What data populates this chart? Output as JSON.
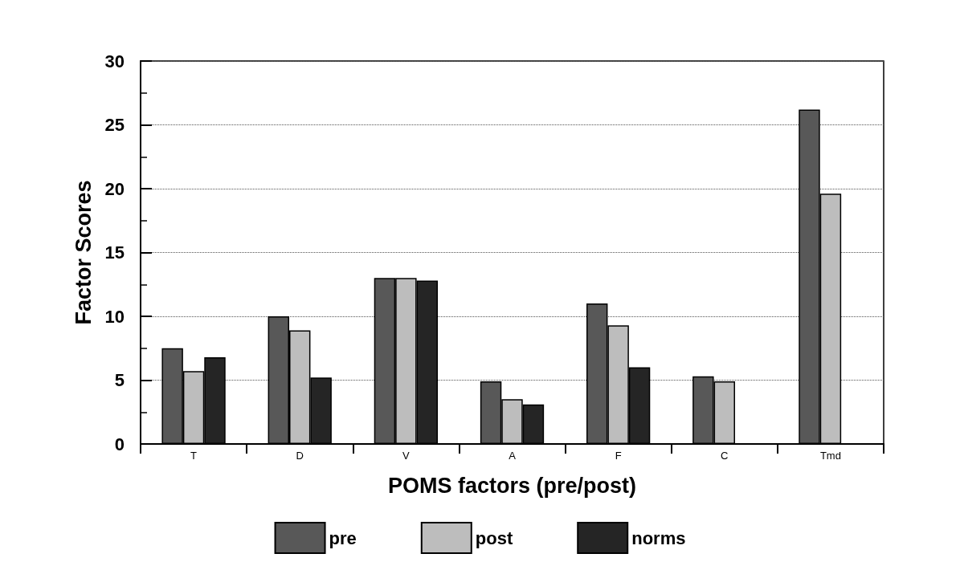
{
  "chart_data": {
    "type": "bar",
    "xlabel": "POMS factors (pre/post)",
    "ylabel": "Factor Scores",
    "categories": [
      "T",
      "D",
      "V",
      "A",
      "F",
      "C",
      "Tmd"
    ],
    "series": [
      {
        "name": "pre",
        "color": "#585858",
        "values": [
          7.5,
          10,
          13,
          4.9,
          11,
          5.3,
          26.2
        ]
      },
      {
        "name": "post",
        "color": "#bdbdbd",
        "values": [
          5.7,
          8.9,
          13,
          3.5,
          9.3,
          4.9,
          19.6
        ]
      },
      {
        "name": "norms",
        "color": "#252525",
        "values": [
          6.8,
          5.2,
          12.8,
          3.1,
          6,
          null,
          null
        ]
      }
    ],
    "ylim": [
      0,
      30
    ],
    "yticks": [
      0,
      {
        "value": 2.5,
        "label": null
      },
      5,
      {
        "value": 7.5,
        "label": null
      },
      10,
      {
        "value": 12.5,
        "label": null
      },
      15,
      {
        "value": 17.5,
        "label": null
      },
      20,
      {
        "value": 22.5,
        "label": null
      },
      25,
      {
        "value": 27.5,
        "label": null
      },
      30
    ],
    "grid": "y",
    "legend": "bottom"
  }
}
